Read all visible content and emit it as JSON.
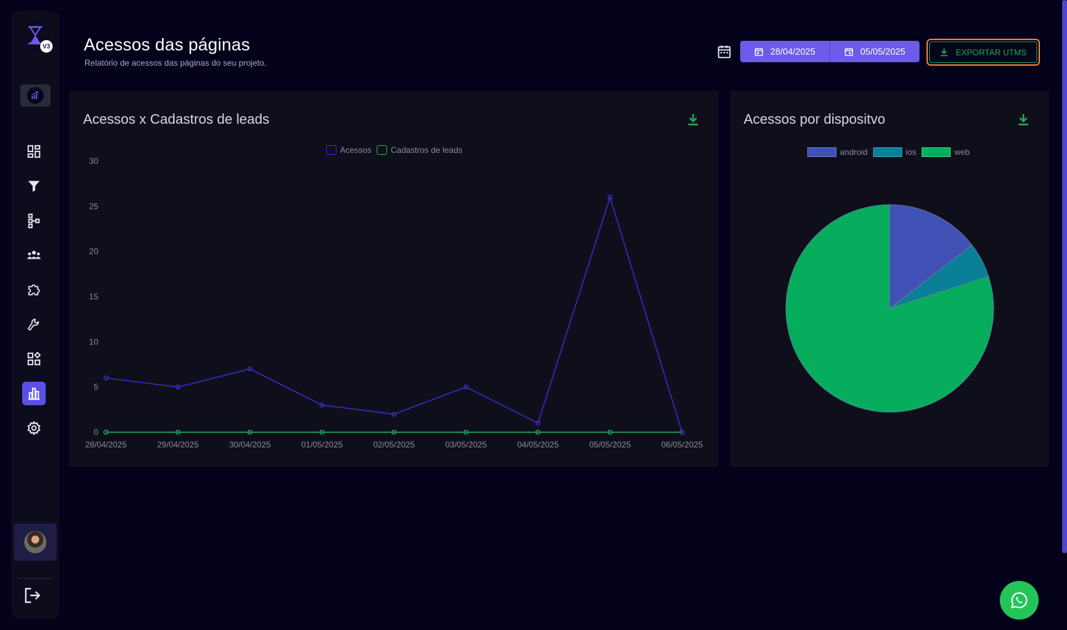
{
  "header": {
    "title": "Acessos das páginas",
    "subtitle": "Relatório de acessos das páginas do seu projeto.",
    "date_start": "28/04/2025",
    "date_end": "05/05/2025",
    "export_label": "EXPORTAR UTMS"
  },
  "logo": {
    "badge": "V3"
  },
  "sidebar": {
    "items": [
      {
        "icon": "dashboard-icon",
        "active": false
      },
      {
        "icon": "funnel-icon",
        "active": false
      },
      {
        "icon": "hierarchy-icon",
        "active": false
      },
      {
        "icon": "users-group-icon",
        "active": false
      },
      {
        "icon": "puzzle-icon",
        "active": false
      },
      {
        "icon": "wrench-icon",
        "active": false
      },
      {
        "icon": "apps-add-icon",
        "active": false
      },
      {
        "icon": "bar-chart-icon",
        "active": true
      },
      {
        "icon": "gear-icon",
        "active": false
      }
    ]
  },
  "colors": {
    "accent": "#6c5ce7",
    "acessos": "#3b2fd0",
    "cadastros": "#20b055",
    "android": "#4050b5",
    "ios": "#0a7f96",
    "web": "#06ad5c",
    "export_border": "#ef7a3a"
  },
  "cards": {
    "line_title": "Acessos x Cadastros de leads",
    "pie_title": "Acessos por dispositvo"
  },
  "chart_data": [
    {
      "type": "line",
      "title": "Acessos x Cadastros de leads",
      "x": [
        "28/04/2025",
        "29/04/2025",
        "30/04/2025",
        "01/05/2025",
        "02/05/2025",
        "03/05/2025",
        "04/05/2025",
        "05/05/2025",
        "06/05/2025"
      ],
      "series": [
        {
          "name": "Acessos",
          "values": [
            6,
            5,
            7,
            3,
            2,
            5,
            1,
            26,
            0
          ]
        },
        {
          "name": "Cadastros de leads",
          "values": [
            0,
            0,
            0,
            0,
            0,
            0,
            0,
            0,
            0
          ]
        }
      ],
      "ylim": [
        0,
        30
      ],
      "yticks": [
        0,
        5,
        10,
        15,
        20,
        25,
        30
      ],
      "legend": "top-center",
      "grid": false
    },
    {
      "type": "pie",
      "title": "Acessos por dispositvo",
      "labels": [
        "android",
        "ios",
        "web"
      ],
      "values": [
        8,
        3,
        44
      ],
      "legend": "top-center"
    }
  ]
}
